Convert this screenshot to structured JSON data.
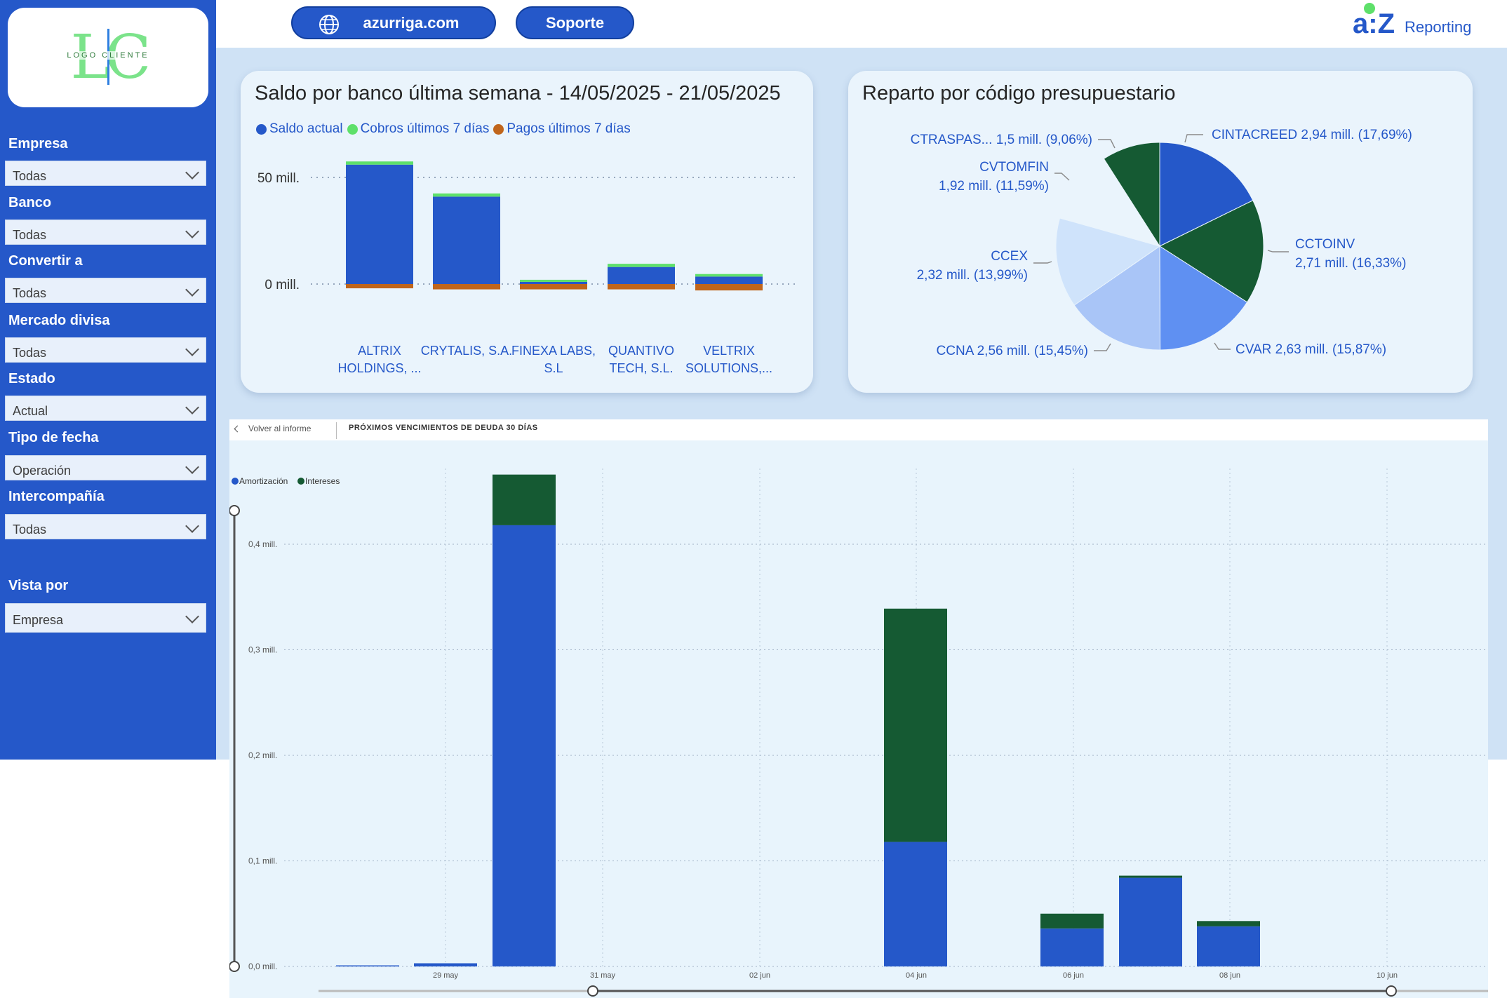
{
  "header": {
    "site_button": "azurriga.com",
    "support_button": "Soporte",
    "brand_mark": "a:Z",
    "brand_name": "Reporting"
  },
  "sidebar": {
    "logo_letters": "LC",
    "logo_text": "LOGO CLIENTE",
    "filters": [
      {
        "label": "Empresa",
        "value": "Todas"
      },
      {
        "label": "Banco",
        "value": "Todas"
      },
      {
        "label": "Convertir a",
        "value": "Todas"
      },
      {
        "label": "Mercado divisa",
        "value": "Todas"
      },
      {
        "label": "Estado",
        "value": "Actual"
      },
      {
        "label": "Tipo de fecha",
        "value": "Operación"
      },
      {
        "label": "Intercompañía",
        "value": "Todas"
      },
      {
        "label": "Vista por",
        "value": "Empresa"
      }
    ]
  },
  "colors": {
    "blue": "#2558c9",
    "green_light": "#5ee06a",
    "orange": "#c0651b",
    "dark_green": "#155a33",
    "pale_blue": "#cfe3fb",
    "lav_blue": "#a9c5f7",
    "mid_blue": "#5f90f2"
  },
  "chart_data": [
    {
      "type": "bar",
      "title": "Saldo por banco última semana - 14/05/2025 - 21/05/2025",
      "legend_position": "top-left",
      "categories": [
        [
          "ALTRIX",
          "HOLDINGS, ..."
        ],
        [
          "CRYTALIS, S.A."
        ],
        [
          "FINEXA LABS,",
          "S.L"
        ],
        [
          "QUANTIVO",
          "TECH, S.L."
        ],
        [
          "VELTRIX",
          "SOLUTIONS,..."
        ]
      ],
      "series": [
        {
          "name": "Saldo actual",
          "color": "#2558c9",
          "values": [
            56,
            41,
            1,
            8,
            3.5
          ]
        },
        {
          "name": "Cobros últimos 7 días",
          "color": "#5ee06a",
          "values": [
            1.5,
            1.5,
            1,
            1.5,
            1.2
          ]
        },
        {
          "name": "Pagos últimos 7 días",
          "color": "#c0651b",
          "values": [
            -2,
            -2.5,
            -2.5,
            -2.5,
            -3
          ]
        }
      ],
      "yticks": [
        {
          "value": 0,
          "label": "0 mill."
        },
        {
          "value": 50,
          "label": "50 mill."
        }
      ],
      "ylim": [
        -4,
        60
      ]
    },
    {
      "type": "pie",
      "title": "Reparto por código presupuestario",
      "slices": [
        {
          "label": "CINTACREED",
          "value_label": "2,94 mill. (17,69%)",
          "value": 2.94,
          "color": "#2558c9"
        },
        {
          "label": "CCTOINV",
          "value_label": "2,71 mill. (16,33%)",
          "value": 2.71,
          "color": "#155a33"
        },
        {
          "label": "CVAR",
          "value_label": "2,63 mill. (15,87%)",
          "value": 2.63,
          "color": "#5f90f2"
        },
        {
          "label": "CCNA",
          "value_label": "2,56 mill. (15,45%)",
          "value": 2.56,
          "color": "#a9c5f7"
        },
        {
          "label": "CCEX",
          "value_label": "2,32 mill. (13,99%)",
          "value": 2.32,
          "color": "#cfe3fb"
        },
        {
          "label": "CVTOMFIN",
          "value_label": "1,92 mill. (11,59%)",
          "value": 1.92,
          "color": "#eaf4fc"
        },
        {
          "label": "CTRASPAS...",
          "value_label": "1,5 mill. (9,06%)",
          "value": 1.5,
          "color": "#155a33"
        }
      ]
    },
    {
      "type": "bar",
      "title": "PRÓXIMOS VENCIMIENTOS DE DEUDA 30 DÍAS",
      "legend_position": "top-left",
      "x_ticks": [
        "29 may",
        "31 may",
        "02 jun",
        "04 jun",
        "06 jun",
        "08 jun",
        "10 jun"
      ],
      "yticks": [
        "0,0 mill.",
        "0,1 mill.",
        "0,2 mill.",
        "0,3 mill.",
        "0,4 mill."
      ],
      "ylim": [
        0,
        0.4
      ],
      "x": [
        "28 may",
        "29 may",
        "30 may",
        "04 jun",
        "06 jun",
        "07 jun",
        "08 jun"
      ],
      "series": [
        {
          "name": "Amortización",
          "color": "#2558c9",
          "values": [
            0.001,
            0.003,
            0.418,
            0.118,
            0.036,
            0.084,
            0.038
          ]
        },
        {
          "name": "Intereses",
          "color": "#155a33",
          "values": [
            0,
            0,
            0.048,
            0.221,
            0.014,
            0.002,
            0.005
          ]
        }
      ]
    }
  ],
  "bottom_panel": {
    "back_link": "Volver al informe"
  }
}
